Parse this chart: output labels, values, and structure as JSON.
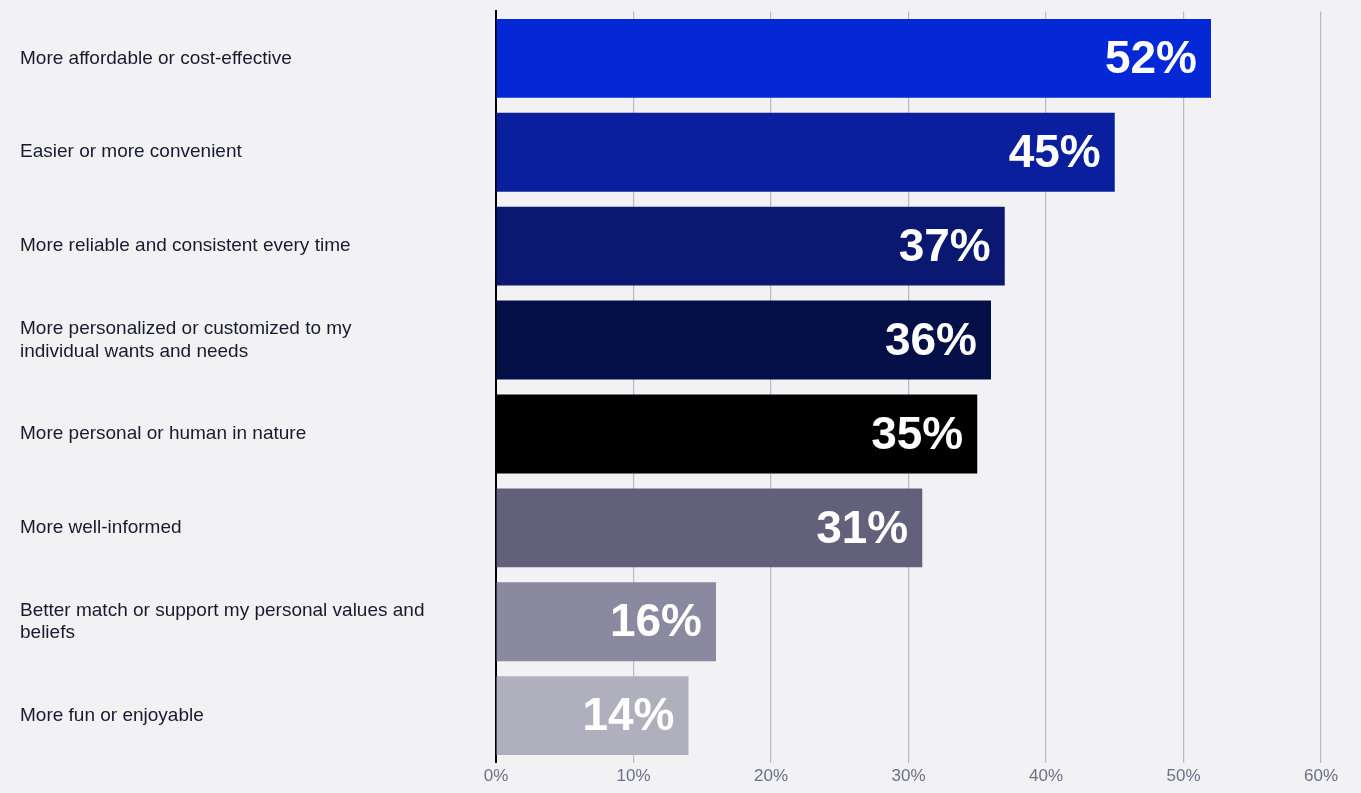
{
  "chart_data": {
    "type": "bar",
    "orientation": "horizontal",
    "categories": [
      "More affordable or cost-effective",
      "Easier or more convenient",
      "More reliable and consistent every time",
      "More personalized or customized to my individual wants and needs",
      "More personal or human in nature",
      "More well-informed",
      "Better match or support my personal values and beliefs",
      "More fun or enjoyable"
    ],
    "values": [
      52,
      45,
      37,
      36,
      35,
      31,
      16,
      14
    ],
    "colors": [
      "#0528d6",
      "#0a1f9e",
      "#0a1872",
      "#061048",
      "#000000",
      "#62607a",
      "#8a89a0",
      "#b0afbd"
    ],
    "value_labels": [
      "52%",
      "45%",
      "37%",
      "36%",
      "35%",
      "31%",
      "16%",
      "14%"
    ],
    "xlim": [
      0,
      60
    ],
    "xticks": [
      {
        "value": 0,
        "label": "0%"
      },
      {
        "value": 10,
        "label": "10%"
      },
      {
        "value": 20,
        "label": "20%"
      },
      {
        "value": 30,
        "label": "30%"
      },
      {
        "value": 40,
        "label": "40%"
      },
      {
        "value": 50,
        "label": "50%"
      },
      {
        "value": 60,
        "label": "60%"
      }
    ],
    "grid": "x",
    "legend": false
  }
}
